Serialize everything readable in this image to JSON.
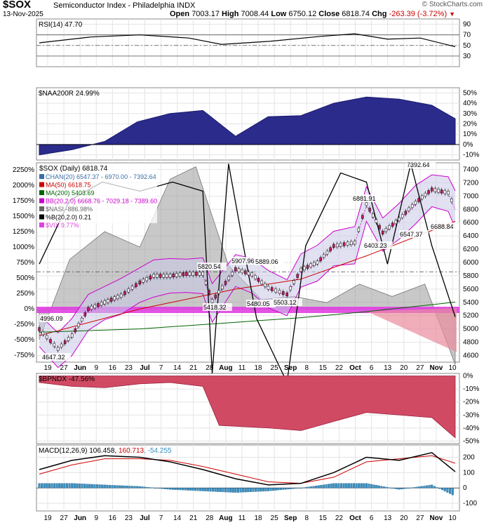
{
  "header": {
    "symbol": "$SOX",
    "name": "Semiconductor Index - Philadelphia  INDX",
    "date": "13-Nov-2025",
    "brand": "© StockCharts.com",
    "open_label": "Open",
    "open": "7003.17",
    "high_label": "High",
    "high": "7008.44",
    "low_label": "Low",
    "low": "6750.12",
    "close_label": "Close",
    "close": "6818.74",
    "chg_label": "Chg",
    "chg": "-263.39 (-3.72%)"
  },
  "colors": {
    "up": "#2e7d2e",
    "down": "#cc0000",
    "navy": "#2b2b8c",
    "red_area": "#d04a63",
    "macd_hist": "#3a8fc0",
    "vix": "#e040e0"
  },
  "x_axis": {
    "labels": [
      "19",
      "27",
      "Jun",
      "9",
      "16",
      "23",
      "Jul",
      "7",
      "14",
      "21",
      "28",
      "Aug",
      "11",
      "18",
      "25",
      "Sep",
      "8",
      "15",
      "22",
      "Oct",
      "6",
      "13",
      "20",
      "27",
      "Nov",
      "10"
    ],
    "bold": [
      "Jun",
      "Jul",
      "Aug",
      "Sep",
      "Oct",
      "Nov"
    ],
    "first_date": "2025-05-19",
    "last_date": "2025-11-13"
  },
  "chart_data": [
    {
      "id": "rsi",
      "type": "line",
      "title": "RSI(14) 47.70",
      "y_ticks": [
        "90",
        "70",
        "50",
        "30"
      ],
      "ylim": [
        10,
        100
      ],
      "ref_lines": [
        70,
        30
      ],
      "mid_line": 50,
      "x": [
        "2025-05-19",
        "2025-06-10",
        "2025-07-01",
        "2025-07-22",
        "2025-08-05",
        "2025-08-26",
        "2025-09-16",
        "2025-10-01",
        "2025-10-15",
        "2025-10-29",
        "2025-11-13"
      ],
      "values": [
        55,
        66,
        70,
        64,
        52,
        58,
        67,
        72,
        62,
        64,
        47.7
      ]
    },
    {
      "id": "naa200r",
      "type": "area",
      "title": "$NAA200R 24.99%",
      "y_ticks": [
        "50%",
        "40%",
        "30%",
        "20%",
        "10%",
        "0%",
        "-10%"
      ],
      "ylim": [
        -15,
        55
      ],
      "zero_line": 0,
      "x": [
        "2025-05-19",
        "2025-06-02",
        "2025-06-16",
        "2025-06-30",
        "2025-07-14",
        "2025-07-28",
        "2025-08-11",
        "2025-08-25",
        "2025-09-08",
        "2025-09-22",
        "2025-10-06",
        "2025-10-20",
        "2025-11-03",
        "2025-11-13"
      ],
      "values": [
        -10,
        -5,
        3,
        22,
        30,
        33,
        8,
        27,
        28,
        40,
        46,
        44,
        38,
        25
      ]
    },
    {
      "id": "price",
      "type": "candlestick",
      "title": "$SOX (Daily) 6818.74",
      "legend": [
        {
          "label": "CHAN(20) 6547.37 - 6970.00 - 7392.64",
          "color": "#3a6ea5"
        },
        {
          "label": "MA(50) 6618.75",
          "color": "#cc0000"
        },
        {
          "label": "MA(200) 5403.69",
          "color": "#006400"
        },
        {
          "label": "BB(20,2.0) 6668.76 - 7029.18 - 7389.60",
          "color": "#cc00cc"
        },
        {
          "label": "$NASI -886.98%",
          "color": "#666666"
        },
        {
          "label": "%B(20,2.0) 0.21",
          "color": "#000000"
        },
        {
          "label": "$VIX 9.77%",
          "color": "#e040e0"
        }
      ],
      "right_ticks": [
        "7400",
        "7200",
        "7000",
        "6800",
        "6600",
        "6400",
        "6200",
        "6000",
        "5800",
        "5600",
        "5400",
        "5200",
        "5000",
        "4800",
        "4600"
      ],
      "left_ticks": [
        "2250%",
        "2000%",
        "1750%",
        "1500%",
        "1250%",
        "1000%",
        "750%",
        "500%",
        "250%",
        "0%",
        "-250%",
        "-500%",
        "-750%"
      ],
      "ylim": [
        4500,
        7500
      ],
      "annotations": [
        "4996.09",
        "4647.32",
        "5418.32",
        "5820.54",
        "5907.96",
        "5480.05",
        "5889.06",
        "5503.12",
        "6881.91",
        "6403.23",
        "6547.37",
        "6688.84",
        "7392.64"
      ],
      "close_x": [
        "2025-05-19",
        "2025-05-27",
        "2025-06-02",
        "2025-06-09",
        "2025-06-16",
        "2025-06-23",
        "2025-07-01",
        "2025-07-07",
        "2025-07-14",
        "2025-07-21",
        "2025-07-28",
        "2025-08-01",
        "2025-08-11",
        "2025-08-18",
        "2025-08-25",
        "2025-09-02",
        "2025-09-08",
        "2025-09-15",
        "2025-09-22",
        "2025-10-01",
        "2025-10-06",
        "2025-10-13",
        "2025-10-20",
        "2025-10-27",
        "2025-11-03",
        "2025-11-10",
        "2025-11-13"
      ],
      "close": [
        4996,
        4700,
        4900,
        5300,
        5400,
        5500,
        5700,
        5800,
        5800,
        5830,
        5830,
        5420,
        5900,
        5820,
        5620,
        5520,
        5890,
        6000,
        6250,
        6300,
        6880,
        6450,
        6650,
        6900,
        7100,
        7050,
        6819
      ],
      "nasi_x": [
        "2025-05-19",
        "2025-06-01",
        "2025-06-16",
        "2025-07-01",
        "2025-07-14",
        "2025-07-25",
        "2025-08-08",
        "2025-08-22",
        "2025-09-05",
        "2025-09-19",
        "2025-10-03",
        "2025-10-17",
        "2025-10-31",
        "2025-11-13"
      ],
      "nasi_pct": [
        -500,
        800,
        1250,
        1000,
        2100,
        2300,
        700,
        150,
        200,
        100,
        400,
        200,
        400,
        -900
      ],
      "pctb_x": [
        "2025-05-19",
        "2025-06-01",
        "2025-06-15",
        "2025-07-01",
        "2025-07-15",
        "2025-07-28",
        "2025-08-01",
        "2025-08-08",
        "2025-08-20",
        "2025-09-02",
        "2025-09-10",
        "2025-09-25",
        "2025-10-06",
        "2025-10-15",
        "2025-10-25",
        "2025-11-03",
        "2025-11-13"
      ],
      "pctb": [
        0.5,
        0.85,
        0.95,
        0.9,
        0.95,
        0.9,
        -0.1,
        1.05,
        0.2,
        -0.15,
        0.6,
        1.0,
        0.95,
        0.5,
        1.05,
        0.6,
        0.21
      ],
      "vix_x": [
        "2025-05-19",
        "2025-08-01",
        "2025-10-06",
        "2025-11-13"
      ],
      "vix_pct": [
        -40,
        -40,
        -40,
        9.77
      ],
      "ma50_x": [
        "2025-05-19",
        "2025-07-01",
        "2025-08-11",
        "2025-09-08",
        "2025-10-06",
        "2025-11-13"
      ],
      "ma50": [
        4900,
        5300,
        5600,
        5750,
        6100,
        6619
      ],
      "ma200_x": [
        "2025-05-19",
        "2025-07-01",
        "2025-08-11",
        "2025-09-08",
        "2025-10-06",
        "2025-11-13"
      ],
      "ma200": [
        4950,
        5000,
        5100,
        5170,
        5260,
        5404
      ]
    },
    {
      "id": "bpndx",
      "type": "area",
      "title": "$BPNDX -47.56%",
      "y_ticks": [
        "0%",
        "-10%",
        "-20%",
        "-30%",
        "-40%",
        "-50%"
      ],
      "ylim": [
        -52,
        2
      ],
      "x": [
        "2025-05-19",
        "2025-06-02",
        "2025-06-16",
        "2025-07-01",
        "2025-07-14",
        "2025-07-28",
        "2025-08-04",
        "2025-08-25",
        "2025-09-08",
        "2025-09-22",
        "2025-10-06",
        "2025-10-20",
        "2025-11-03",
        "2025-11-13"
      ],
      "values": [
        -5,
        -8,
        -9,
        -6,
        -5,
        -8,
        -38,
        -40,
        -42,
        -35,
        -28,
        -30,
        -32,
        -47.56
      ]
    },
    {
      "id": "macd",
      "type": "line",
      "title": "MACD(12,26,9) 106.458, 160.713, -54.255",
      "title_parts": [
        "MACD(12,26,9) 106.458, ",
        "160.713",
        ", -54.255"
      ],
      "y_ticks": [
        "200",
        "100",
        "0",
        "-100"
      ],
      "ylim": [
        -150,
        280
      ],
      "x": [
        "2025-05-19",
        "2025-06-02",
        "2025-06-16",
        "2025-07-01",
        "2025-07-14",
        "2025-07-28",
        "2025-08-11",
        "2025-08-25",
        "2025-09-08",
        "2025-09-22",
        "2025-10-06",
        "2025-10-20",
        "2025-11-03",
        "2025-11-13"
      ],
      "macd": [
        120,
        180,
        210,
        200,
        170,
        120,
        60,
        20,
        30,
        100,
        200,
        180,
        230,
        106
      ],
      "signal": [
        90,
        150,
        190,
        190,
        180,
        140,
        90,
        40,
        30,
        70,
        170,
        190,
        210,
        161
      ],
      "hist": [
        30,
        30,
        20,
        10,
        -10,
        -20,
        -30,
        -20,
        0,
        30,
        30,
        -10,
        20,
        -54
      ]
    }
  ]
}
